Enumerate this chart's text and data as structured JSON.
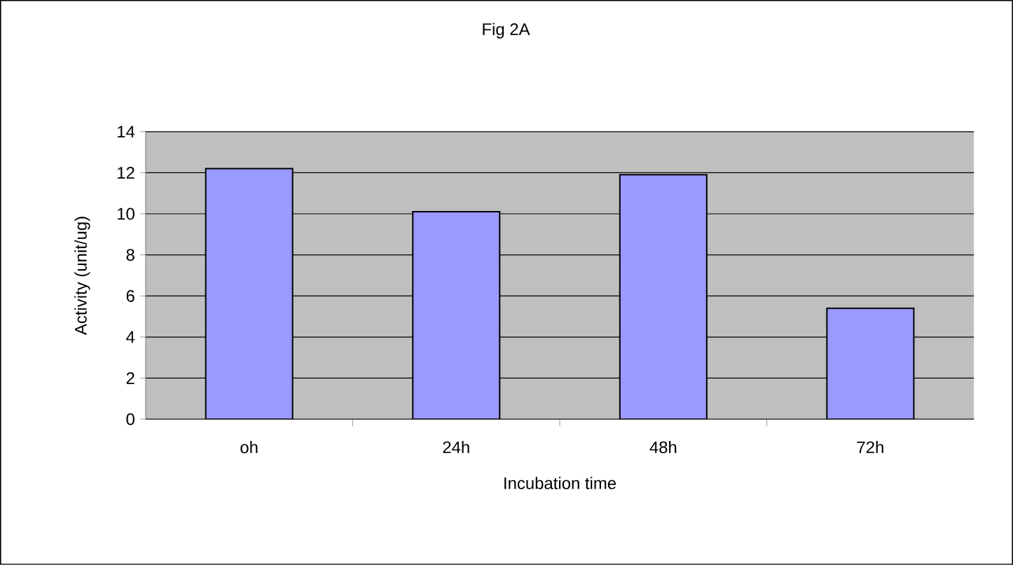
{
  "chart_data": {
    "type": "bar",
    "title": "Fig 2A",
    "xlabel": "Incubation time",
    "ylabel": "Activity (unit/ug)",
    "categories": [
      "oh",
      "24h",
      "48h",
      "72h"
    ],
    "values": [
      12.2,
      10.1,
      11.9,
      5.4
    ],
    "color": "#9999ff",
    "ylim": [
      0,
      14
    ],
    "yticks": [
      0,
      2,
      4,
      6,
      8,
      10,
      12,
      14
    ],
    "grid": "y"
  }
}
